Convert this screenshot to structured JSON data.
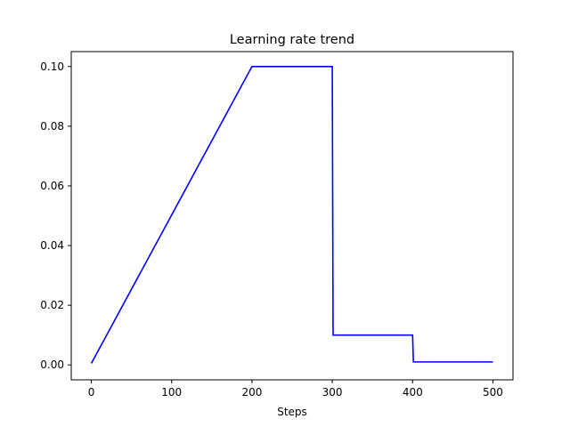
{
  "chart_data": {
    "type": "line",
    "title": "Learning rate trend",
    "xlabel": "Steps",
    "ylabel": "",
    "xlim": [
      -25,
      525
    ],
    "ylim": [
      -0.005,
      0.105
    ],
    "xticks": [
      0,
      100,
      200,
      300,
      400,
      500
    ],
    "yticks": [
      0.0,
      0.02,
      0.04,
      0.06,
      0.08,
      0.1
    ],
    "xtick_labels": [
      "0",
      "100",
      "200",
      "300",
      "400",
      "500"
    ],
    "ytick_labels": [
      "0.00",
      "0.02",
      "0.04",
      "0.06",
      "0.08",
      "0.10"
    ],
    "grid": false,
    "legend": "none",
    "series": [
      {
        "color": "#0000ff",
        "x": [
          0,
          200,
          300,
          301,
          400,
          401,
          500
        ],
        "y": [
          0.0005,
          0.1,
          0.1,
          0.01,
          0.01,
          0.001,
          0.001
        ]
      }
    ]
  }
}
